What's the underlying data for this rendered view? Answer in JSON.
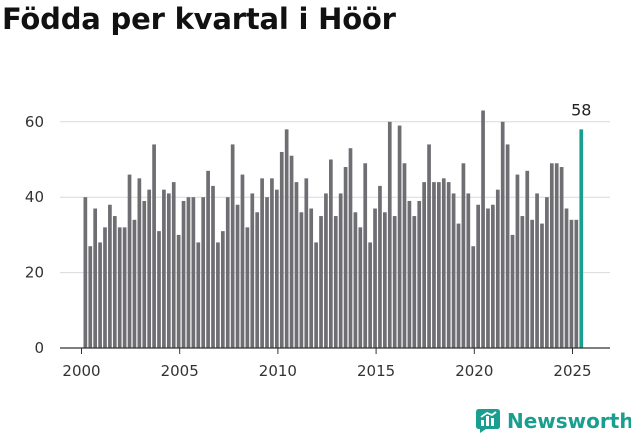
{
  "title": "Födda per kvartal i Höör",
  "brand": "Newsworthy",
  "colors": {
    "bar": "#6f6e73",
    "highlight": "#1a9e8f",
    "grid": "#d9d9d9",
    "axis": "#333333",
    "text": "#333333"
  },
  "chart_data": {
    "type": "bar",
    "title": "Födda per kvartal i Höör",
    "xlabel": "",
    "ylabel": "",
    "ylim": [
      0,
      65
    ],
    "yticks": [
      0,
      20,
      40,
      60
    ],
    "xticks": [
      2000,
      2005,
      2010,
      2015,
      2020,
      2025
    ],
    "grid": true,
    "highlight_label": "58",
    "start_year": 2000,
    "periods_per_year": 4,
    "values": [
      40,
      27,
      37,
      28,
      32,
      38,
      35,
      32,
      32,
      46,
      34,
      45,
      39,
      42,
      54,
      31,
      42,
      41,
      44,
      30,
      39,
      40,
      40,
      28,
      40,
      47,
      43,
      28,
      31,
      40,
      54,
      38,
      46,
      32,
      41,
      36,
      45,
      40,
      45,
      42,
      52,
      58,
      51,
      44,
      36,
      45,
      37,
      28,
      35,
      41,
      50,
      35,
      41,
      48,
      53,
      36,
      32,
      49,
      28,
      37,
      43,
      36,
      60,
      35,
      59,
      49,
      39,
      35,
      39,
      44,
      54,
      44,
      44,
      45,
      44,
      41,
      33,
      49,
      41,
      27,
      38,
      63,
      37,
      38,
      42,
      60,
      54,
      30,
      46,
      35,
      47,
      34,
      41,
      33,
      40,
      49,
      49,
      48,
      37,
      34,
      34,
      58
    ]
  }
}
